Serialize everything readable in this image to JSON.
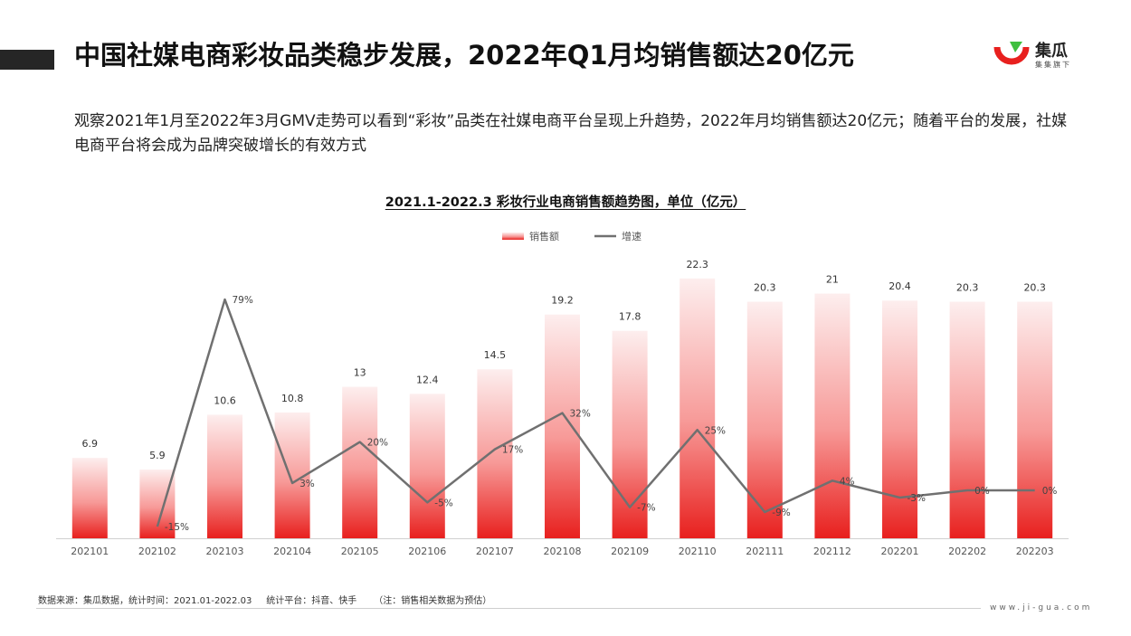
{
  "header": {
    "title": "中国社媒电商彩妆品类稳步发展，2022年Q1月均销售额达20亿元",
    "logo_name": "集瓜",
    "logo_sub": "集集旗下"
  },
  "description": "观察2021年1月至2022年3月GMV走势可以看到“彩妆”品类在社媒电商平台呈现上升趋势，2022年月均销售额达20亿元；随着平台的发展，社媒电商平台将会成为品牌突破增长的有效方式",
  "chart_data": {
    "type": "bar",
    "title": "2021.1-2022.3 彩妆行业电商销售额趋势图，单位（亿元）",
    "categories": [
      "202101",
      "202102",
      "202103",
      "202104",
      "202105",
      "202106",
      "202107",
      "202108",
      "202109",
      "202110",
      "202111",
      "202112",
      "202201",
      "202202",
      "202203"
    ],
    "series": [
      {
        "name": "销售额",
        "type": "bar",
        "values": [
          6.9,
          5.9,
          10.6,
          10.8,
          13,
          12.4,
          14.5,
          19.2,
          17.8,
          22.3,
          20.3,
          21,
          20.4,
          20.3,
          20.3
        ],
        "labels": [
          "6.9",
          "5.9",
          "10.6",
          "10.8",
          "13",
          "12.4",
          "14.5",
          "19.2",
          "17.8",
          "22.3",
          "20.3",
          "21",
          "20.4",
          "20.3",
          "20.3"
        ]
      },
      {
        "name": "增速",
        "type": "line",
        "values": [
          null,
          -15,
          79,
          3,
          20,
          -5,
          17,
          32,
          -7,
          25,
          -9,
          4,
          -3,
          0,
          0
        ],
        "labels": [
          "",
          "-15%",
          "79%",
          "3%",
          "20%",
          "-5%",
          "17%",
          "32%",
          "-7%",
          "25%",
          "-9%",
          "4%",
          "-3%",
          "0%",
          "0%"
        ]
      }
    ],
    "legend": "top-center",
    "grid": false,
    "colors": {
      "bar_top": "#fdeeee",
      "bar_bottom": "#e8201e",
      "line": "#707070"
    }
  },
  "footer": {
    "source": "数据来源：集瓜数据，统计时间：2021.01-2022.03     统计平台：抖音、快手      （注：销售相关数据为预估）",
    "website": "www.ji-gua.com"
  }
}
